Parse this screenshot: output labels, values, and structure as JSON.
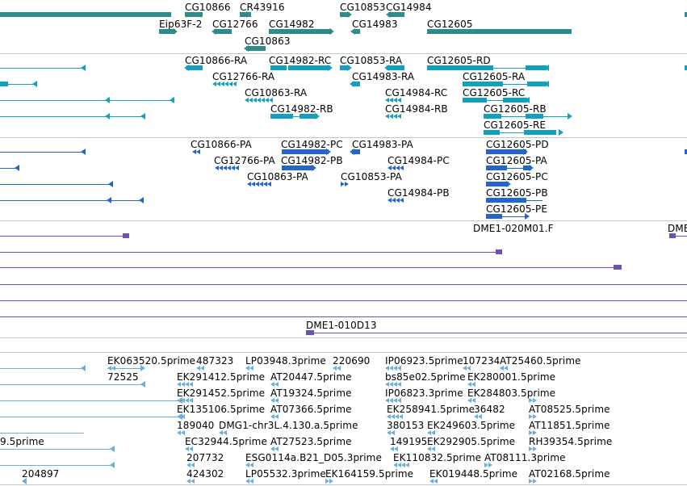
{
  "colors": {
    "gene": "#2e8b8b",
    "rna": "#12a0c0",
    "protein": "#2266cc",
    "bac": "#7050b0",
    "est": "#6aaedc",
    "separator": "#c8c8c8"
  },
  "tracks": {
    "genes": {
      "labels": [
        "CG10866",
        "CR43916",
        "CG10853",
        "CG14984",
        "Eip63F-2",
        "CG12766",
        "CG14982",
        "CG14983",
        "CG12605",
        "CG10863"
      ]
    },
    "transcripts": {
      "labels": [
        "CG10866-RA",
        "CG14982-RC",
        "CG10853-RA",
        "CG12605-RD",
        "CG12766-RA",
        "CG14983-RA",
        "CG12605-RA",
        "CG10863-RA",
        "CG14984-RC",
        "CG12605-RC",
        "CG14982-RB",
        "CG14984-RB",
        "CG12605-RB",
        "CG12605-RE"
      ]
    },
    "proteins": {
      "labels": [
        "CG10866-PA",
        "CG14982-PC",
        "CG14983-PA",
        "CG12605-PD",
        "CG12766-PA",
        "CG14982-PB",
        "CG14984-PC",
        "CG12605-PA",
        "CG10863-PA",
        "CG10853-PA",
        "CG12605-PC",
        "CG14984-PB",
        "CG12605-PB",
        "CG12605-PE"
      ]
    },
    "bacs": {
      "labels": [
        "DME1-020M01.F",
        "DME",
        "DME1-010D13"
      ]
    },
    "ests": {
      "labels": [
        "EK063520.5prime",
        "487323",
        "LP03948.3prime",
        "220690",
        "IP06923.5prime",
        "107234",
        "AT25460.5prime",
        "72525",
        "EK291412.5prime",
        "AT20447.5prime",
        "bs85e02.5prime",
        "EK280001.5prime",
        "EK291452.5prime",
        "AT19324.5prime",
        "IP06823.3prime",
        "EK284803.5prime",
        "EK135106.5prime",
        "AT07366.5prime",
        "EK258941.5prime",
        "36482",
        "AT08525.5prime",
        "189040",
        "DMG1-chr3L.4.130.a.5prime",
        "380153",
        "EK249603.5prime",
        "AT11851.5prime",
        "9.5prime",
        "EC32944.5prime",
        "AT27523.5prime",
        "149195",
        "EK292905.5prime",
        "RH39354.5prime",
        "207732",
        "ESG0114a.B21_D05.3prime",
        "EK110832.5prime",
        "AT08111.3prime",
        "204897",
        "424302",
        "LP05532.3prime",
        "EK164159.5prime",
        "EK019448.5prime",
        "AT02168.5prime"
      ]
    }
  }
}
